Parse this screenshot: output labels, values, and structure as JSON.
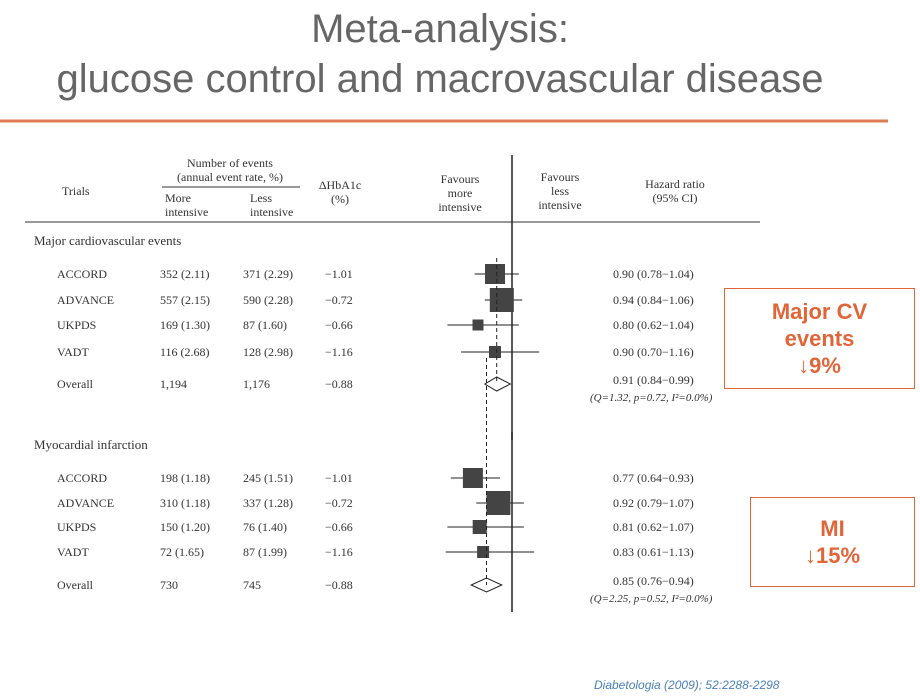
{
  "title": "Meta-analysis:\nglucose control and macrovascular disease",
  "header": {
    "trials": "Trials",
    "events": "Number of events\n(annual event rate, %)",
    "more": "More\nintensive",
    "less": "Less\nintensive",
    "dhba1c": "ΔHbA1c\n(%)",
    "fav_more": "Favours\nmore\nintensive",
    "fav_less": "Favours\nless\nintensive",
    "hr": "Hazard ratio\n(95% CI)"
  },
  "sections": [
    {
      "heading": "Major cardiovascular events",
      "rows": [
        {
          "trial": "ACCORD",
          "more": "352 (2.11)",
          "less": "371 (2.29)",
          "dhba1c": "−1.01",
          "hr": "0.90 (0.78−1.04)",
          "hr_value": 0.9,
          "ci": [
            0.78,
            1.04
          ]
        },
        {
          "trial": "ADVANCE",
          "more": "557 (2.15)",
          "less": "590 (2.28)",
          "dhba1c": "−0.72",
          "hr": "0.94 (0.84−1.06)",
          "hr_value": 0.94,
          "ci": [
            0.84,
            1.06
          ]
        },
        {
          "trial": "UKPDS",
          "more": "169 (1.30)",
          "less": "87 (1.60)",
          "dhba1c": "−0.66",
          "hr": "0.80 (0.62−1.04)",
          "hr_value": 0.8,
          "ci": [
            0.62,
            1.04
          ]
        },
        {
          "trial": "VADT",
          "more": "116 (2.68)",
          "less": "128 (2.98)",
          "dhba1c": "−1.16",
          "hr": "0.90 (0.70−1.16)",
          "hr_value": 0.9,
          "ci": [
            0.7,
            1.16
          ]
        }
      ],
      "overall": {
        "trial": "Overall",
        "more": "1,194",
        "less": "1,176",
        "dhba1c": "−0.88",
        "hr": "0.91 (0.84−0.99)",
        "hr_value": 0.91,
        "ci": [
          0.84,
          0.99
        ],
        "stats": "(Q=1.32, p=0.72, I²=0.0%)"
      },
      "callout": "Major CV\nevents\n↓9%"
    },
    {
      "heading": "Myocardial infarction",
      "rows": [
        {
          "trial": "ACCORD",
          "more": "198 (1.18)",
          "less": "245 (1.51)",
          "dhba1c": "−1.01",
          "hr": "0.77 (0.64−0.93)",
          "hr_value": 0.77,
          "ci": [
            0.64,
            0.93
          ]
        },
        {
          "trial": "ADVANCE",
          "more": "310 (1.18)",
          "less": "337 (1.28)",
          "dhba1c": "−0.72",
          "hr": "0.92 (0.79−1.07)",
          "hr_value": 0.92,
          "ci": [
            0.79,
            1.07
          ]
        },
        {
          "trial": "UKPDS",
          "more": "150 (1.20)",
          "less": "76 (1.40)",
          "dhba1c": "−0.66",
          "hr": "0.81 (0.62−1.07)",
          "hr_value": 0.81,
          "ci": [
            0.62,
            1.07
          ]
        },
        {
          "trial": "VADT",
          "more": "72 (1.65)",
          "less": "87 (1.99)",
          "dhba1c": "−1.16",
          "hr": "0.83 (0.61−1.13)",
          "hr_value": 0.83,
          "ci": [
            0.61,
            1.13
          ]
        }
      ],
      "overall": {
        "trial": "Overall",
        "more": "730",
        "less": "745",
        "dhba1c": "−0.88",
        "hr": "0.85 (0.76−0.94)",
        "hr_value": 0.85,
        "ci": [
          0.76,
          0.94
        ],
        "stats": "(Q=2.25, p=0.52, I²=0.0%)"
      },
      "callout": "MI\n↓15%"
    }
  ],
  "citation": "Diabetologia (2009); 52:2288-2298"
}
